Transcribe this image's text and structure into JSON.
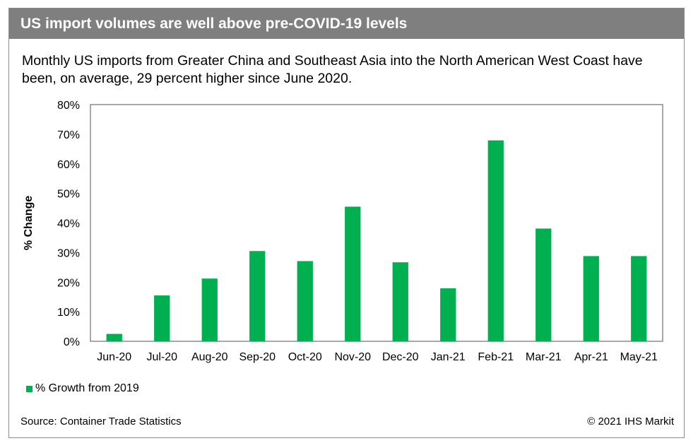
{
  "title": "US import volumes are well above pre-COVID-19 levels",
  "subtitle": "Monthly US imports from Greater China and Southeast Asia into the North American West Coast have been, on average, 29 percent higher since June 2020.",
  "source": "Source: Container Trade Statistics",
  "copyright": "© 2021 IHS Markit",
  "colors": {
    "bar": "#00b050",
    "title_bg": "#7f7f7f"
  },
  "chart_data": {
    "type": "bar",
    "categories": [
      "Jun-20",
      "Jul-20",
      "Aug-20",
      "Sep-20",
      "Oct-20",
      "Nov-20",
      "Dec-20",
      "Jan-21",
      "Feb-21",
      "Mar-21",
      "Apr-21",
      "May-21"
    ],
    "series": [
      {
        "name": "% Growth from 2019",
        "values": [
          2.5,
          15.5,
          21.2,
          30.5,
          27.1,
          45.5,
          26.7,
          17.9,
          67.9,
          38.1,
          28.8,
          28.8
        ]
      }
    ],
    "ylabel": "% Change",
    "xlabel": "",
    "ylim": [
      0,
      80
    ],
    "yticks": [
      "0%",
      "10%",
      "20%",
      "30%",
      "40%",
      "50%",
      "60%",
      "70%",
      "80%"
    ],
    "grid": false,
    "legend": "bottom-left"
  }
}
